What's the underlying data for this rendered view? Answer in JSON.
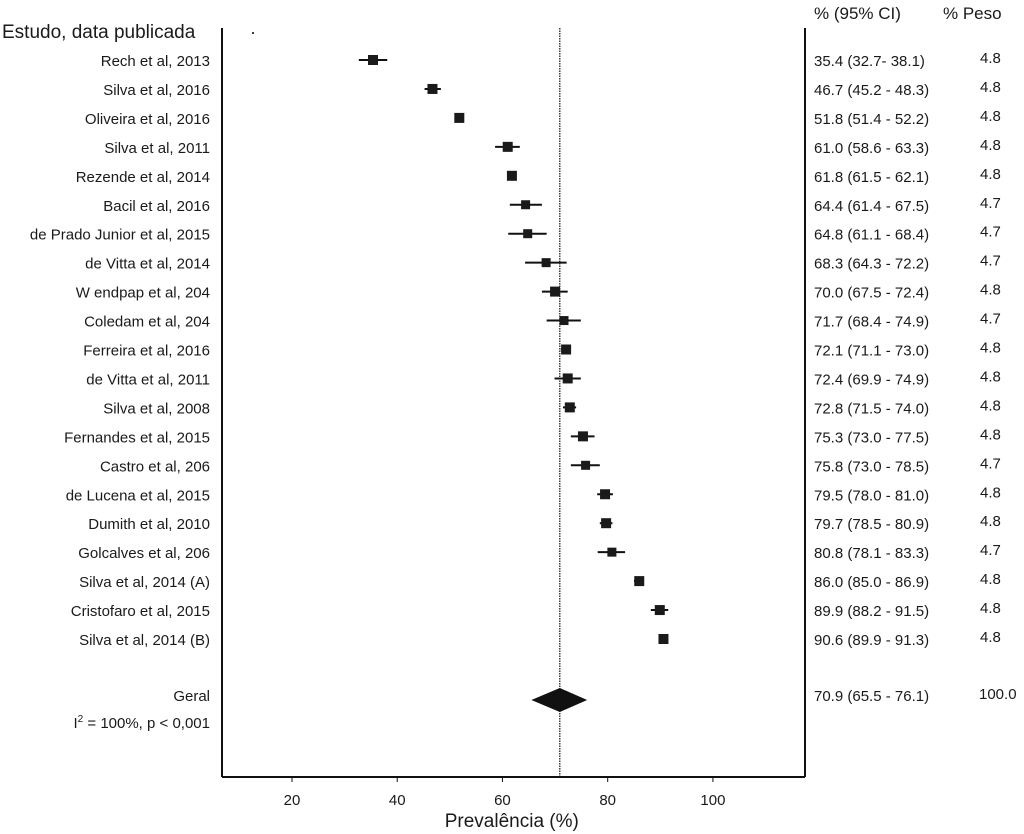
{
  "chart_data": {
    "type": "forest",
    "xlabel": "Prevalência (%)",
    "xlim": [
      6.7,
      117.5
    ],
    "xticks": [
      20,
      40,
      60,
      80,
      100
    ],
    "reference_line": 70.9,
    "headers": {
      "study": "Estudo, data publicada",
      "ci": "% (95% CI)",
      "weight": "% Peso"
    },
    "studies": [
      {
        "label": "Rech et al, 2013",
        "est": 35.4,
        "lo": 32.7,
        "hi": 38.1,
        "ci_text": "35.4 (32.7- 38.1)",
        "weight": "4.8"
      },
      {
        "label": "Silva et al, 2016",
        "est": 46.7,
        "lo": 45.2,
        "hi": 48.3,
        "ci_text": "46.7 (45.2 - 48.3)",
        "weight": "4.8"
      },
      {
        "label": "Oliveira et al, 2016",
        "est": 51.8,
        "lo": 51.4,
        "hi": 52.2,
        "ci_text": "51.8 (51.4 - 52.2)",
        "weight": "4.8"
      },
      {
        "label": "Silva et al, 2011",
        "est": 61.0,
        "lo": 58.6,
        "hi": 63.3,
        "ci_text": "61.0 (58.6 - 63.3)",
        "weight": "4.8"
      },
      {
        "label": "Rezende et al, 2014",
        "est": 61.8,
        "lo": 61.5,
        "hi": 62.1,
        "ci_text": "61.8 (61.5 - 62.1)",
        "weight": "4.8"
      },
      {
        "label": "Bacil et al, 2016",
        "est": 64.4,
        "lo": 61.4,
        "hi": 67.5,
        "ci_text": "64.4 (61.4 - 67.5)",
        "weight": "4.7"
      },
      {
        "label": "de Prado Junior et al, 2015",
        "est": 64.8,
        "lo": 61.1,
        "hi": 68.4,
        "ci_text": "64.8 (61.1 - 68.4)",
        "weight": "4.7"
      },
      {
        "label": "de Vitta et al, 2014",
        "est": 68.3,
        "lo": 64.3,
        "hi": 72.2,
        "ci_text": "68.3 (64.3 - 72.2)",
        "weight": "4.7"
      },
      {
        "label": "W  endpap et al, 204",
        "est": 70.0,
        "lo": 67.5,
        "hi": 72.4,
        "ci_text": "70.0 (67.5 - 72.4)",
        "weight": "4.8"
      },
      {
        "label": "Coledam et al, 204",
        "est": 71.7,
        "lo": 68.4,
        "hi": 74.9,
        "ci_text": "71.7 (68.4 - 74.9)",
        "weight": "4.7"
      },
      {
        "label": "Ferreira et al, 2016",
        "est": 72.1,
        "lo": 71.1,
        "hi": 73.0,
        "ci_text": "72.1 (71.1 - 73.0)",
        "weight": "4.8"
      },
      {
        "label": "de Vitta et al, 2011",
        "est": 72.4,
        "lo": 69.9,
        "hi": 74.9,
        "ci_text": "72.4 (69.9 - 74.9)",
        "weight": "4.8"
      },
      {
        "label": "Silva et al, 2008",
        "est": 72.8,
        "lo": 71.5,
        "hi": 74.0,
        "ci_text": "72.8 (71.5 - 74.0)",
        "weight": "4.8"
      },
      {
        "label": "Fernandes et al, 2015",
        "est": 75.3,
        "lo": 73.0,
        "hi": 77.5,
        "ci_text": "75.3 (73.0 - 77.5)",
        "weight": "4.8"
      },
      {
        "label": "Castro et al, 206",
        "est": 75.8,
        "lo": 73.0,
        "hi": 78.5,
        "ci_text": "75.8 (73.0 - 78.5)",
        "weight": "4.7"
      },
      {
        "label": "de Lucena et al, 2015",
        "est": 79.5,
        "lo": 78.0,
        "hi": 81.0,
        "ci_text": "79.5 (78.0 - 81.0)",
        "weight": "4.8"
      },
      {
        "label": "Dumith et al, 2010",
        "est": 79.7,
        "lo": 78.5,
        "hi": 80.9,
        "ci_text": "79.7 (78.5 - 80.9)",
        "weight": "4.8"
      },
      {
        "label": "Golcalves et al, 206",
        "est": 80.8,
        "lo": 78.1,
        "hi": 83.3,
        "ci_text": "80.8 (78.1 - 83.3)",
        "weight": "4.7"
      },
      {
        "label": "Silva et al, 2014 (A)",
        "est": 86.0,
        "lo": 85.0,
        "hi": 86.9,
        "ci_text": "86.0 (85.0 - 86.9)",
        "weight": "4.8"
      },
      {
        "label": "Cristofaro et al, 2015",
        "est": 89.9,
        "lo": 88.2,
        "hi": 91.5,
        "ci_text": "89.9 (88.2 - 91.5)",
        "weight": "4.8"
      },
      {
        "label": "Silva et al, 2014 (B)",
        "est": 90.6,
        "lo": 89.9,
        "hi": 91.3,
        "ci_text": "90.6 (89.9 - 91.3)",
        "weight": "4.8"
      }
    ],
    "overall": {
      "label": "Geral",
      "est": 70.9,
      "lo": 65.5,
      "hi": 76.1,
      "ci_text": "70.9 (65.5 - 76.1)",
      "weight": "100.0"
    },
    "heterogeneity": {
      "i2_prefix": "I",
      "i2_sup": "2",
      "i2_rest": " = 100%, p < 0,001"
    }
  }
}
